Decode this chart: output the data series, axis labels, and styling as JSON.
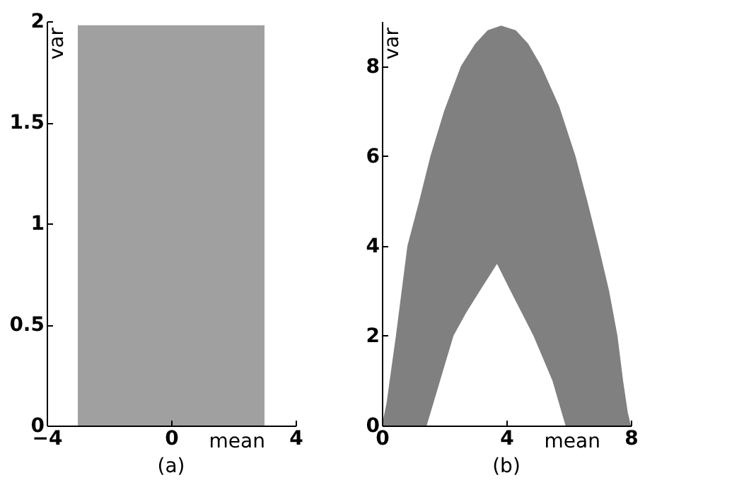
{
  "chart_data": [
    {
      "type": "area",
      "title": "(a)",
      "xlabel": "mean",
      "ylabel": "var",
      "xlim": [
        -4,
        4
      ],
      "xticks": [
        -4,
        0,
        4
      ],
      "ylim": [
        0,
        2
      ],
      "yticks": [
        0,
        0.5,
        1,
        1.5,
        2
      ],
      "grid": false,
      "series": [
        {
          "color": "#a0a0a0",
          "x": [
            -3,
            -2,
            -1,
            0,
            1,
            2,
            3
          ],
          "values": [
            1.98,
            1.98,
            1.98,
            1.98,
            1.98,
            1.98,
            1.98
          ]
        }
      ]
    },
    {
      "type": "area",
      "title": "(b)",
      "xlabel": "mean",
      "ylabel": "var",
      "xlim": [
        0,
        8
      ],
      "xticks": [
        0,
        4,
        8
      ],
      "ylim": [
        0,
        9
      ],
      "yticks": [
        0,
        2,
        4,
        6,
        8
      ],
      "grid": false,
      "series": [
        {
          "color": "#808080",
          "x": [
            0,
            0.15,
            0.45,
            0.82,
            1.2,
            1.56,
            2.0,
            2.54,
            3.0,
            3.4,
            3.83,
            4.3,
            4.7,
            5.12,
            5.7,
            6.22,
            6.6,
            6.96,
            7.3,
            7.57,
            7.75,
            7.9,
            8.0
          ],
          "values": [
            0,
            0.5,
            2,
            4,
            5,
            6,
            7,
            8,
            8.5,
            8.8,
            8.9,
            8.8,
            8.5,
            8,
            7.1,
            6,
            5,
            4,
            3,
            2,
            1,
            0.3,
            0
          ]
        },
        {
          "color": "#ffffff",
          "x": [
            1.44,
            1.87,
            2.3,
            2.7,
            3.15,
            3.7,
            4.13,
            4.5,
            4.87,
            5.48,
            5.9
          ],
          "values": [
            0,
            1,
            2,
            2.5,
            3,
            3.6,
            3,
            2.5,
            2,
            1,
            0
          ]
        }
      ]
    }
  ]
}
